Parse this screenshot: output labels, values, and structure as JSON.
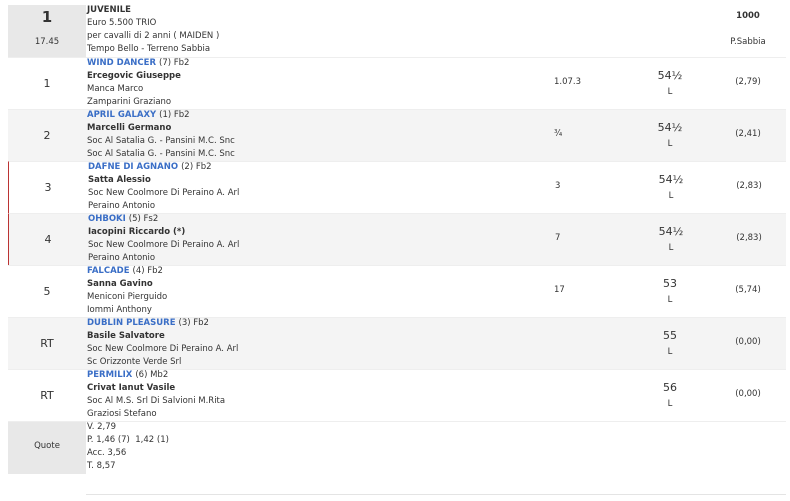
{
  "header": {
    "number": "1",
    "time": "17.45",
    "title": "JUVENILE",
    "lines": [
      "Euro 5.500 TRIO",
      "per cavalli di 2 anni ( MAIDEN )",
      "Tempo Bello - Terreno Sabbia"
    ],
    "distance": "1000",
    "track": "P.Sabbia"
  },
  "rows": [
    {
      "pos": "1",
      "horse": "WIND DANCER",
      "info": "(7) Fb2",
      "jockey": "Ercegovic Giuseppe",
      "owner": "Manca Marco",
      "trainer": "Zamparini Graziano",
      "gap": "1.07.3",
      "weight": "54½",
      "l": "L",
      "odds": "(2,79)"
    },
    {
      "pos": "2",
      "horse": "APRIL GALAXY",
      "info": "(1) Fb2",
      "jockey": "Marcelli Germano",
      "owner": "Soc Al Satalia G. - Pansini M.C. Snc",
      "trainer": "Soc Al Satalia G. - Pansini M.C. Snc",
      "gap": "¾",
      "weight": "54½",
      "l": "L",
      "odds": "(2,41)"
    },
    {
      "pos": "3",
      "horse": "DAFNE DI AGNANO",
      "info": "(2) Fb2",
      "jockey": "Satta Alessio",
      "owner": "Soc New Coolmore Di Peraino A. Arl",
      "trainer": "Peraino Antonio",
      "gap": "3",
      "weight": "54½",
      "l": "L",
      "odds": "(2,83)"
    },
    {
      "pos": "4",
      "horse": "OHBOKI",
      "info": "(5) Fs2",
      "jockey": "Iacopini Riccardo (*)",
      "owner": "Soc New Coolmore Di Peraino A. Arl",
      "trainer": "Peraino Antonio",
      "gap": "7",
      "weight": "54½",
      "l": "L",
      "odds": "(2,83)"
    },
    {
      "pos": "5",
      "horse": "FALCADE",
      "info": "(4) Fb2",
      "jockey": "Sanna Gavino",
      "owner": "Meniconi Pierguido",
      "trainer": "Iommi Anthony",
      "gap": "17",
      "weight": "53",
      "l": "L",
      "odds": "(5,74)"
    },
    {
      "pos": "RT",
      "horse": "DUBLIN PLEASURE",
      "info": "(3) Fb2",
      "jockey": "Basile Salvatore",
      "owner": "Soc New Coolmore Di Peraino A. Arl",
      "trainer": "Sc Orizzonte Verde Srl",
      "gap": null,
      "weight": "55",
      "l": "L",
      "odds": "(0,00)"
    },
    {
      "pos": "RT",
      "horse": "PERMILIX",
      "info": "(6) Mb2",
      "jockey": "Crivat Ianut Vasile",
      "owner": "Soc Al M.S. Srl Di Salvioni M.Rita",
      "trainer": "Graziosi Stefano",
      "gap": null,
      "weight": "56",
      "l": "L",
      "odds": "(0,00)"
    }
  ],
  "quote": {
    "label": "Quote",
    "lines": [
      "V. 2,79",
      "P. 1,46 (7)  1,42 (1)",
      "Acc. 3,56",
      "T. 8,57"
    ]
  }
}
